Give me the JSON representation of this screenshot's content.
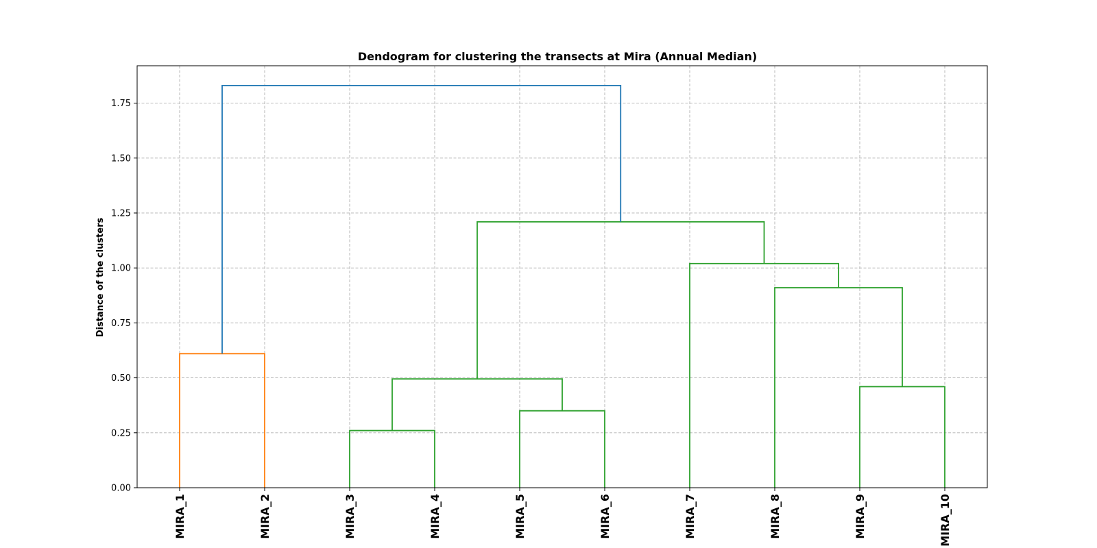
{
  "chart_data": {
    "type": "dendrogram",
    "title": "Dendogram for clustering the transects at Mira (Annual Median)",
    "xlabel": "",
    "ylabel": "Distance of the clusters",
    "ylim": [
      0,
      1.92
    ],
    "yticks": [
      "0.00",
      "0.25",
      "0.50",
      "0.75",
      "1.00",
      "1.25",
      "1.50",
      "1.75"
    ],
    "ytick_values": [
      0,
      0.25,
      0.5,
      0.75,
      1.0,
      1.25,
      1.5,
      1.75
    ],
    "grid": true,
    "leaves": [
      "MIRA_1",
      "MIRA_2",
      "MIRA_3",
      "MIRA_4",
      "MIRA_5",
      "MIRA_6",
      "MIRA_7",
      "MIRA_8",
      "MIRA_9",
      "MIRA_10"
    ],
    "colors": {
      "orange": "#ff7f0e",
      "green": "#2ca02c",
      "blue": "#1f77b4"
    },
    "merges": [
      {
        "left": "MIRA_1",
        "right": "MIRA_2",
        "distance": 0.61,
        "color": "#ff7f0e"
      },
      {
        "left": "MIRA_3",
        "right": "MIRA_4",
        "distance": 0.26,
        "color": "#2ca02c"
      },
      {
        "left": "MIRA_5",
        "right": "MIRA_6",
        "distance": 0.35,
        "color": "#2ca02c"
      },
      {
        "left": "(MIRA_3,MIRA_4)",
        "right": "(MIRA_5,MIRA_6)",
        "distance": 0.495,
        "color": "#2ca02c"
      },
      {
        "left": "MIRA_9",
        "right": "MIRA_10",
        "distance": 0.46,
        "color": "#2ca02c"
      },
      {
        "left": "MIRA_8",
        "right": "(MIRA_9,MIRA_10)",
        "distance": 0.91,
        "color": "#2ca02c"
      },
      {
        "left": "MIRA_7",
        "right": "(MIRA_8,MIRA_9,MIRA_10)",
        "distance": 1.02,
        "color": "#2ca02c"
      },
      {
        "left": "(MIRA_3..MIRA_6)",
        "right": "(MIRA_7..MIRA_10)",
        "distance": 1.21,
        "color": "#2ca02c"
      },
      {
        "left": "(MIRA_1,MIRA_2)",
        "right": "(MIRA_3..MIRA_10)",
        "distance": 1.83,
        "color": "#1f77b4"
      }
    ]
  }
}
